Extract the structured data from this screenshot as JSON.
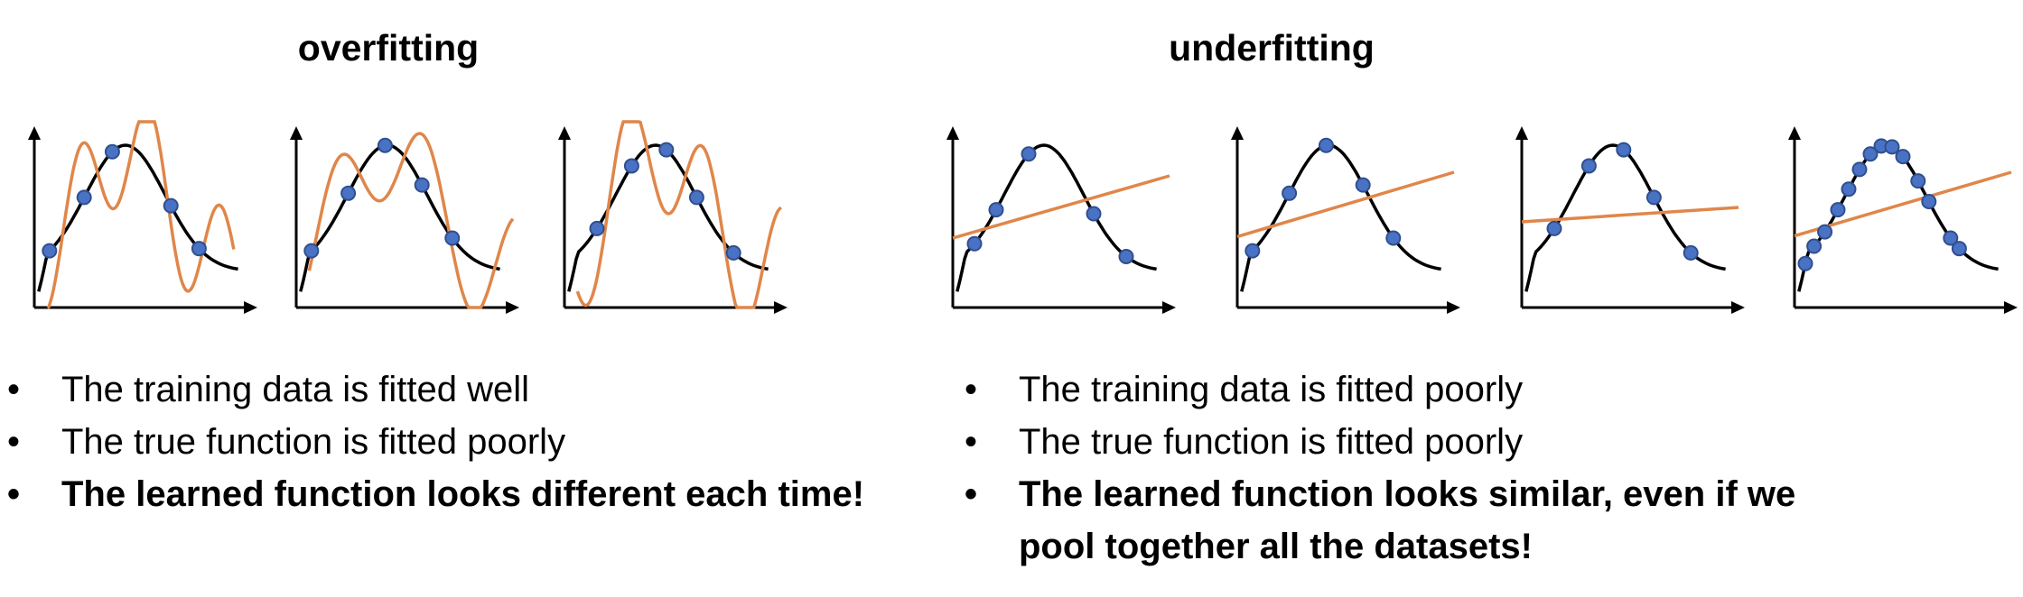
{
  "overfitting": {
    "title": "overfitting",
    "bullets": [
      {
        "text": "The training data is fitted well",
        "bold": false
      },
      {
        "text": "The true function is fitted poorly",
        "bold": false
      },
      {
        "text": "The learned function looks different each time!",
        "bold": true
      }
    ]
  },
  "underfitting": {
    "title": "underfitting",
    "bullets": [
      {
        "text": "The training data is fitted poorly",
        "bold": false
      },
      {
        "text": "The true function is fitted poorly",
        "bold": false
      },
      {
        "text": "The learned function looks similar, even if we pool together all the datasets!",
        "bold": true
      }
    ]
  },
  "colors": {
    "true_function": "#000000",
    "learned_function": "#E0864A",
    "data_point_fill": "#4A72C4",
    "data_point_stroke": "#2F4F8F",
    "axis": "#000000"
  }
}
